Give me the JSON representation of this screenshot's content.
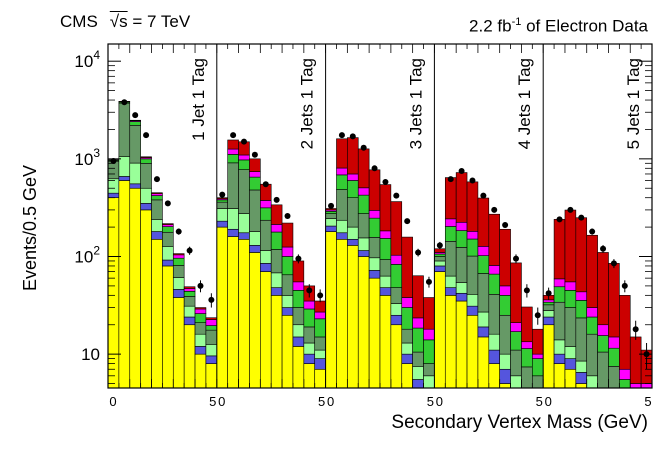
{
  "header": {
    "experiment": "CMS",
    "sqrt_s_symbol": "√s",
    "energy": "= 7 TeV",
    "lumi_value": "2.2 fb",
    "lumi_exponent": "-1",
    "lumi_suffix": " of Electron Data"
  },
  "chart_data": {
    "type": "bar",
    "subtype": "stacked-histogram-with-data-points",
    "xlabel": "Secondary Vertex Mass (GeV)",
    "ylabel": "Events/0.5 GeV",
    "yscale": "log",
    "ylim": [
      4.5,
      15000
    ],
    "y_ticks": [
      {
        "value": 10,
        "label": "10"
      },
      {
        "value": 100,
        "label": "10",
        "exp": "2"
      },
      {
        "value": 1000,
        "label": "10",
        "exp": "3"
      },
      {
        "value": 10000,
        "label": "10",
        "exp": "4"
      }
    ],
    "bin_width_gev": 0.5,
    "bins_per_panel": 10,
    "x_tick_labels": [
      "0",
      "5",
      "0",
      "5",
      "0",
      "5",
      "0",
      "5",
      "0",
      "5"
    ],
    "stack_colors": {
      "yellow": "#ffff00",
      "blue": "#5555dd",
      "lightgreen": "#99ff99",
      "darkgreen": "#669966",
      "green": "#33cc33",
      "magenta": "#ff00ff",
      "red": "#cc0000"
    },
    "stack_order": [
      "yellow",
      "blue",
      "lightgreen",
      "darkgreen",
      "green",
      "magenta",
      "red"
    ],
    "panels": [
      {
        "label": "1 Jet  1 Tag",
        "stack": {
          "yellow": [
            400,
            600,
            500,
            300,
            150,
            80,
            38,
            20,
            10,
            8
          ],
          "blue": [
            45,
            60,
            55,
            50,
            30,
            12,
            8,
            4,
            2,
            1.6
          ],
          "lightgreen": [
            180,
            400,
            350,
            150,
            60,
            35,
            15,
            7,
            4,
            3
          ],
          "darkgreen": [
            320,
            2660,
            1300,
            400,
            140,
            50,
            20,
            8,
            5,
            5
          ],
          "green": [
            20,
            100,
            200,
            100,
            40,
            25,
            15,
            5,
            5,
            2
          ],
          "magenta": [
            10,
            40,
            50,
            30,
            20,
            10,
            8,
            3,
            3,
            3
          ],
          "red": [
            5,
            20,
            30,
            20,
            10,
            5,
            3,
            2,
            1,
            1
          ]
        },
        "data": [
          950,
          3800,
          2800,
          1750,
          620,
          350,
          180,
          115,
          50,
          36
        ],
        "err": [
          30,
          60,
          50,
          40,
          25,
          19,
          13,
          11,
          7,
          6
        ]
      },
      {
        "label": "2 Jets 1 Tag",
        "stack": {
          "yellow": [
            200,
            160,
            150,
            110,
            70,
            40,
            25,
            12,
            8,
            7
          ],
          "blue": [
            30,
            30,
            25,
            20,
            15,
            8,
            5,
            3,
            2,
            2
          ],
          "lightgreen": [
            80,
            120,
            100,
            50,
            30,
            20,
            10,
            5,
            3,
            2
          ],
          "darkgreen": [
            50,
            600,
            500,
            300,
            120,
            50,
            25,
            10,
            6,
            4
          ],
          "green": [
            20,
            200,
            200,
            170,
            80,
            60,
            35,
            15,
            10,
            8
          ],
          "magenta": [
            10,
            150,
            120,
            90,
            60,
            35,
            25,
            10,
            6,
            4
          ],
          "red": [
            10,
            300,
            400,
            260,
            175,
            125,
            95,
            35,
            15,
            8
          ]
        },
        "data": [
          430,
          1750,
          1500,
          1100,
          550,
          380,
          260,
          95,
          45,
          40
        ],
        "err": [
          20,
          42,
          39,
          33,
          23,
          19,
          16,
          10,
          7,
          6
        ]
      },
      {
        "label": "3 Jets 1 Tag",
        "stack": {
          "yellow": [
            180,
            150,
            130,
            100,
            60,
            40,
            20,
            8,
            4,
            3
          ],
          "blue": [
            25,
            25,
            20,
            15,
            12,
            8,
            5,
            2,
            1.5,
            1.5
          ],
          "lightgreen": [
            40,
            60,
            50,
            40,
            25,
            15,
            8,
            3,
            2,
            1.5
          ],
          "darkgreen": [
            30,
            250,
            200,
            120,
            60,
            30,
            15,
            5,
            3,
            2
          ],
          "green": [
            15,
            200,
            200,
            150,
            90,
            60,
            35,
            12,
            8,
            6
          ],
          "magenta": [
            10,
            120,
            100,
            80,
            50,
            30,
            20,
            8,
            5,
            4
          ],
          "red": [
            10,
            800,
            950,
            760,
            475,
            362,
            262,
            120,
            40,
            20
          ]
        },
        "data": [
          330,
          1750,
          1700,
          1300,
          800,
          580,
          420,
          230,
          110,
          55
        ],
        "err": [
          18,
          42,
          41,
          36,
          28,
          24,
          20,
          15,
          10,
          7
        ]
      },
      {
        "label": "4 Jets 1 Tag",
        "stack": {
          "yellow": [
            70,
            40,
            35,
            25,
            15,
            8,
            5,
            3,
            2,
            2
          ],
          "blue": [
            10,
            8,
            7,
            6,
            4,
            3,
            2,
            1.5,
            1.2,
            1
          ],
          "lightgreen": [
            10,
            15,
            12,
            10,
            8,
            5,
            3,
            1.5,
            1.2,
            1
          ],
          "darkgreen": [
            10,
            80,
            70,
            60,
            40,
            25,
            15,
            5,
            3,
            2
          ],
          "green": [
            6,
            60,
            60,
            50,
            35,
            25,
            15,
            6,
            4,
            3
          ],
          "magenta": [
            4,
            40,
            40,
            30,
            25,
            15,
            10,
            4,
            2,
            1
          ],
          "red": [
            10,
            400,
            500,
            400,
            270,
            190,
            140,
            65,
            17,
            8
          ]
        },
        "data": [
          130,
          620,
          750,
          600,
          420,
          300,
          210,
          95,
          45,
          25
        ],
        "err": [
          11,
          25,
          27,
          24,
          20,
          17,
          14,
          10,
          7,
          5
        ]
      },
      {
        "label": "5 Jets 1 Tag",
        "stack": {
          "yellow": [
            20,
            8,
            7,
            5,
            3,
            2,
            1.5,
            1,
            1,
            1
          ],
          "blue": [
            4,
            2,
            2,
            1.5,
            1,
            1,
            1,
            0.5,
            0.5,
            0.5
          ],
          "lightgreen": [
            4,
            4,
            3,
            2,
            2,
            1.5,
            1,
            0.5,
            0.5,
            0.5
          ],
          "darkgreen": [
            4,
            20,
            18,
            15,
            10,
            6,
            4,
            2,
            1,
            1
          ],
          "green": [
            2,
            15,
            15,
            12,
            8,
            5,
            4,
            1.5,
            1,
            1
          ],
          "magenta": [
            2,
            10,
            10,
            8,
            6,
            4.5,
            3.5,
            1.5,
            1,
            1
          ],
          "red": [
            4,
            181,
            244,
            206,
            135,
            90,
            70,
            33,
            10,
            6
          ]
        },
        "data": [
          42,
          240,
          300,
          250,
          180,
          120,
          85,
          50,
          18,
          10
        ],
        "err": [
          6,
          15,
          17,
          16,
          13,
          11,
          9,
          7,
          4,
          3
        ]
      }
    ]
  }
}
